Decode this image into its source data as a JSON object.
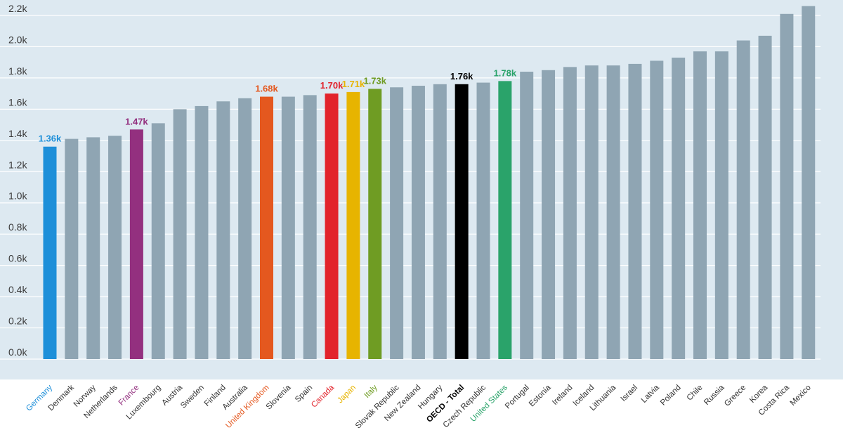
{
  "chart_data": {
    "type": "bar",
    "ylim": [
      0,
      2.2
    ],
    "y_ticks": [
      "0.0k",
      "0.2k",
      "0.4k",
      "0.6k",
      "0.8k",
      "1.0k",
      "1.2k",
      "1.4k",
      "1.6k",
      "1.8k",
      "2.0k",
      "2.2k"
    ],
    "grid": true,
    "colors": {
      "background": "#dde9f1",
      "default_bar": "#8fa5b3",
      "gridline": "#ffffff",
      "tick_text": "#3a3a3a"
    },
    "categories": [
      "Germany",
      "Denmark",
      "Norway",
      "Netherlands",
      "France",
      "Luxembourg",
      "Austria",
      "Sweden",
      "Finland",
      "Australia",
      "United Kingdom",
      "Slovenia",
      "Spain",
      "Canada",
      "Japan",
      "Italy",
      "Slovak Republic",
      "New Zealand",
      "Hungary",
      "OECD - Total",
      "Czech Republic",
      "United States",
      "Portugal",
      "Estonia",
      "Ireland",
      "Iceland",
      "Lithuania",
      "Israel",
      "Latvia",
      "Poland",
      "Chile",
      "Russia",
      "Greece",
      "Korea",
      "Costa Rica",
      "Mexico"
    ],
    "values": [
      1.36,
      1.41,
      1.42,
      1.43,
      1.47,
      1.51,
      1.6,
      1.62,
      1.65,
      1.67,
      1.68,
      1.68,
      1.69,
      1.7,
      1.71,
      1.73,
      1.74,
      1.75,
      1.76,
      1.76,
      1.77,
      1.78,
      1.84,
      1.85,
      1.87,
      1.88,
      1.88,
      1.89,
      1.91,
      1.93,
      1.97,
      1.97,
      2.04,
      2.07,
      2.21,
      2.26
    ],
    "highlights": [
      {
        "category": "Germany",
        "color": "#1d8fd9",
        "label": "1.36k"
      },
      {
        "category": "France",
        "color": "#93307f",
        "label": "1.47k"
      },
      {
        "category": "United Kingdom",
        "color": "#e4581f",
        "label": "1.68k"
      },
      {
        "category": "Canada",
        "color": "#e2232b",
        "label": "1.70k"
      },
      {
        "category": "Japan",
        "color": "#e7b400",
        "label": "1.71k"
      },
      {
        "category": "Italy",
        "color": "#6f9c23",
        "label": "1.73k"
      },
      {
        "category": "OECD - Total",
        "color": "#000000",
        "label": "1.76k"
      },
      {
        "category": "United States",
        "color": "#2aa36a",
        "label": "1.78k"
      }
    ]
  }
}
